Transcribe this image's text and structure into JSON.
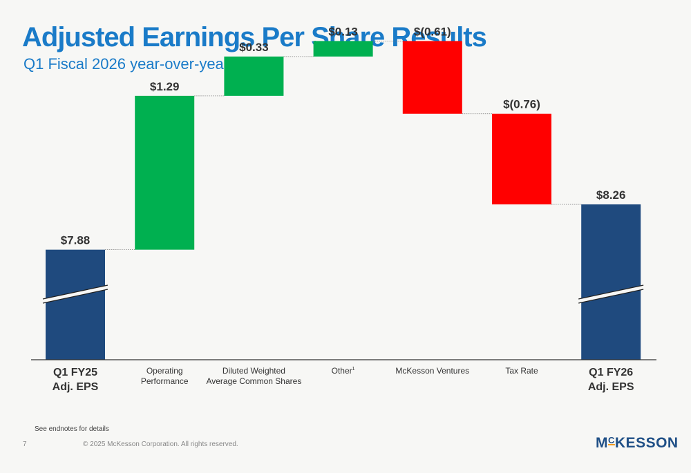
{
  "header": {
    "title": "Adjusted Earnings Per Share Results",
    "subtitle": "Q1 Fiscal 2026 year-over-year"
  },
  "chart_data": {
    "type": "bar",
    "subtype": "waterfall",
    "categories": [
      {
        "lines": [
          "Q1 FY25",
          "Adj. EPS"
        ],
        "emphasis": true
      },
      {
        "lines": [
          "Operating",
          "Performance"
        ],
        "emphasis": false
      },
      {
        "lines": [
          "Diluted Weighted",
          "Average Common Shares"
        ],
        "emphasis": false
      },
      {
        "lines": [
          "Other"
        ],
        "superscript": "1",
        "emphasis": false
      },
      {
        "lines": [
          "McKesson Ventures"
        ],
        "emphasis": false
      },
      {
        "lines": [
          "Tax Rate"
        ],
        "emphasis": false
      },
      {
        "lines": [
          "Q1 FY26",
          "Adj. EPS"
        ],
        "emphasis": true
      }
    ],
    "bars": [
      {
        "kind": "total",
        "value": 7.88,
        "label": "$7.88"
      },
      {
        "kind": "delta",
        "value": 1.29,
        "label": "$1.29"
      },
      {
        "kind": "delta",
        "value": 0.33,
        "label": "$0.33"
      },
      {
        "kind": "delta",
        "value": 0.13,
        "label": "$0.13"
      },
      {
        "kind": "delta",
        "value": -0.61,
        "label": "$(0.61)"
      },
      {
        "kind": "delta",
        "value": -0.76,
        "label": "$(0.76)"
      },
      {
        "kind": "total",
        "value": 8.26,
        "label": "$8.26"
      }
    ],
    "axis_break": true,
    "connector_lines": true,
    "colors": {
      "total": "#1f4a7e",
      "increase": "#00b050",
      "decrease": "#ff0000",
      "label": "#333333"
    }
  },
  "footer": {
    "footnote": "See endnotes for details",
    "page_number": "7",
    "copyright": "© 2025 McKesson Corporation. All rights reserved.",
    "logo": {
      "prefix": "M",
      "sup": "C",
      "rest": "KESSON"
    }
  }
}
